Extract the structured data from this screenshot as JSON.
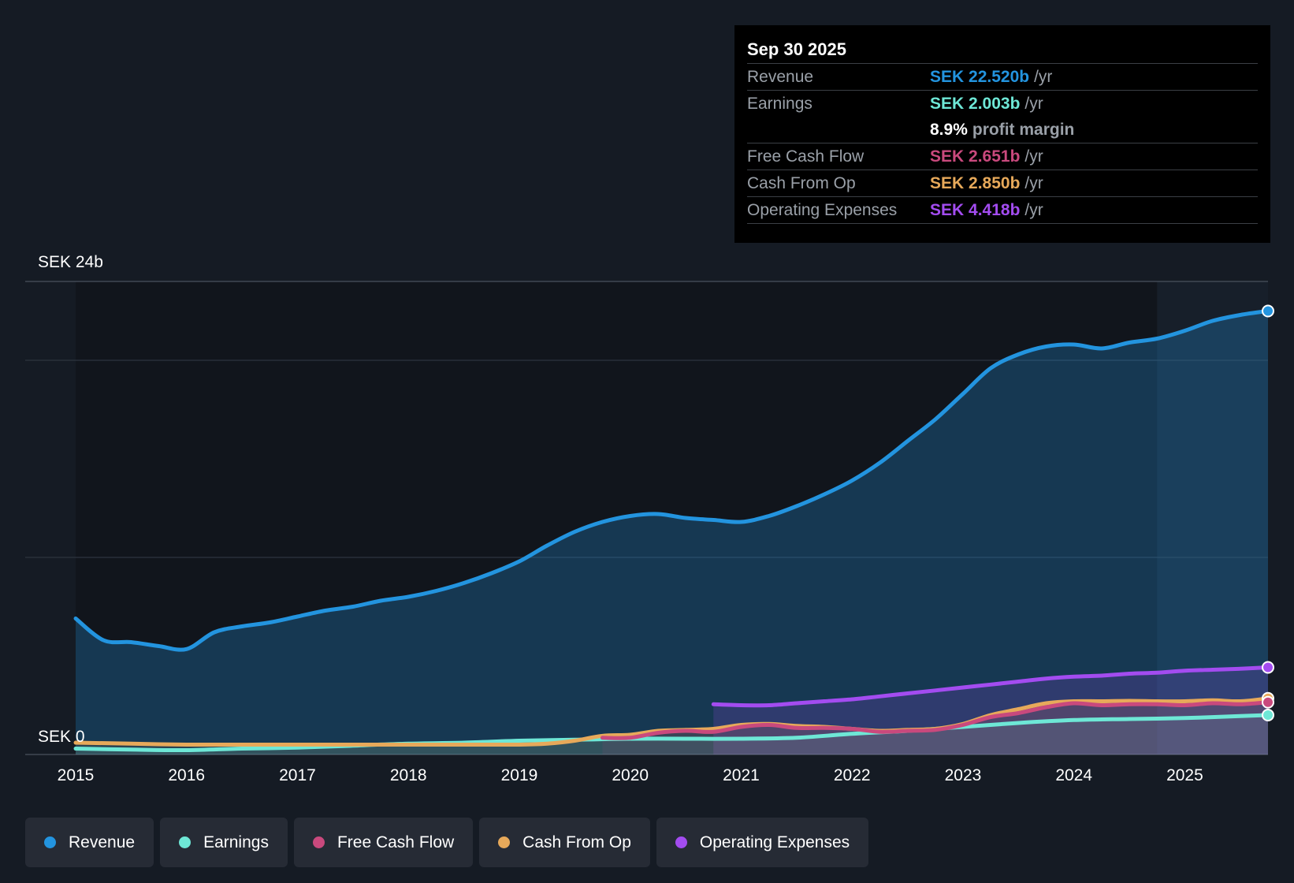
{
  "colors": {
    "background": "#151b24",
    "revenue": "#2394df",
    "earnings": "#6ee7d6",
    "fcf": "#c9497d",
    "cfo": "#e7a95a",
    "opex": "#a34cf0",
    "grid": "#2e353f"
  },
  "tooltip": {
    "date": "Sep 30 2025",
    "rows": [
      {
        "label": "Revenue",
        "value": "SEK 22.520b",
        "unit": "/yr"
      },
      {
        "label": "Earnings",
        "value": "SEK 2.003b",
        "unit": "/yr"
      },
      {
        "margin_value": "8.9%",
        "margin_text": "profit margin"
      },
      {
        "label": "Free Cash Flow",
        "value": "SEK 2.651b",
        "unit": "/yr"
      },
      {
        "label": "Cash From Op",
        "value": "SEK 2.850b",
        "unit": "/yr"
      },
      {
        "label": "Operating Expenses",
        "value": "SEK 4.418b",
        "unit": "/yr"
      }
    ]
  },
  "legend": [
    {
      "label": "Revenue",
      "icon": "revenue-dot-icon"
    },
    {
      "label": "Earnings",
      "icon": "earnings-dot-icon"
    },
    {
      "label": "Free Cash Flow",
      "icon": "fcf-dot-icon"
    },
    {
      "label": "Cash From Op",
      "icon": "cfo-dot-icon"
    },
    {
      "label": "Operating Expenses",
      "icon": "opex-dot-icon"
    }
  ],
  "chart_data": {
    "type": "line",
    "title": "",
    "xlabel": "",
    "ylabel": "",
    "y_top_label": "SEK 24b",
    "y_zero_label": "SEK 0",
    "ylim": [
      0,
      24
    ],
    "xlim": [
      2015.0,
      2025.75
    ],
    "x_ticks": [
      "2015",
      "2016",
      "2017",
      "2018",
      "2019",
      "2020",
      "2021",
      "2022",
      "2023",
      "2024",
      "2025"
    ],
    "highlight_start": 2024.75,
    "series": [
      {
        "name": "Revenue",
        "key": "revenue",
        "x": [
          2015.0,
          2015.25,
          2015.5,
          2015.75,
          2016.0,
          2016.25,
          2016.5,
          2016.75,
          2017.0,
          2017.25,
          2017.5,
          2017.75,
          2018.0,
          2018.25,
          2018.5,
          2018.75,
          2019.0,
          2019.25,
          2019.5,
          2019.75,
          2020.0,
          2020.25,
          2020.5,
          2020.75,
          2021.0,
          2021.25,
          2021.5,
          2021.75,
          2022.0,
          2022.25,
          2022.5,
          2022.75,
          2023.0,
          2023.25,
          2023.5,
          2023.75,
          2024.0,
          2024.25,
          2024.5,
          2024.75,
          2025.0,
          2025.25,
          2025.5,
          2025.75
        ],
        "values": [
          6.9,
          5.8,
          5.7,
          5.5,
          5.35,
          6.2,
          6.5,
          6.7,
          7.0,
          7.3,
          7.5,
          7.8,
          8.0,
          8.3,
          8.7,
          9.2,
          9.8,
          10.6,
          11.3,
          11.8,
          12.1,
          12.2,
          12.0,
          11.9,
          11.8,
          12.1,
          12.6,
          13.2,
          13.9,
          14.8,
          15.9,
          17.0,
          18.3,
          19.6,
          20.3,
          20.7,
          20.8,
          20.6,
          20.9,
          21.1,
          21.5,
          22.0,
          22.3,
          22.5
        ]
      },
      {
        "name": "Earnings",
        "key": "earnings",
        "x": [
          2015.0,
          2015.5,
          2016.0,
          2016.5,
          2017.0,
          2017.5,
          2018.0,
          2018.5,
          2019.0,
          2019.5,
          2020.0,
          2020.5,
          2021.0,
          2021.5,
          2022.0,
          2022.5,
          2023.0,
          2023.5,
          2024.0,
          2024.5,
          2025.0,
          2025.5,
          2025.75
        ],
        "values": [
          0.3,
          0.25,
          0.22,
          0.3,
          0.35,
          0.45,
          0.55,
          0.6,
          0.7,
          0.75,
          0.8,
          0.8,
          0.8,
          0.85,
          1.05,
          1.2,
          1.4,
          1.6,
          1.75,
          1.8,
          1.85,
          1.95,
          2.0
        ]
      },
      {
        "name": "Free Cash Flow",
        "key": "fcf",
        "x": [
          2019.75,
          2020.0,
          2020.25,
          2020.5,
          2020.75,
          2021.0,
          2021.25,
          2021.5,
          2021.75,
          2022.0,
          2022.25,
          2022.5,
          2022.75,
          2023.0,
          2023.25,
          2023.5,
          2023.75,
          2024.0,
          2024.25,
          2024.5,
          2024.75,
          2025.0,
          2025.25,
          2025.5,
          2025.75
        ],
        "values": [
          0.85,
          0.85,
          1.1,
          1.2,
          1.15,
          1.4,
          1.5,
          1.35,
          1.35,
          1.3,
          1.15,
          1.2,
          1.25,
          1.5,
          1.9,
          2.1,
          2.4,
          2.6,
          2.5,
          2.55,
          2.55,
          2.5,
          2.6,
          2.55,
          2.65
        ]
      },
      {
        "name": "Cash From Op",
        "key": "cfo",
        "x": [
          2015.0,
          2015.5,
          2016.0,
          2016.5,
          2017.0,
          2017.5,
          2018.0,
          2018.5,
          2019.0,
          2019.25,
          2019.5,
          2019.75,
          2020.0,
          2020.25,
          2020.5,
          2020.75,
          2021.0,
          2021.25,
          2021.5,
          2021.75,
          2022.0,
          2022.25,
          2022.5,
          2022.75,
          2023.0,
          2023.25,
          2023.5,
          2023.75,
          2024.0,
          2024.25,
          2024.5,
          2024.75,
          2025.0,
          2025.25,
          2025.5,
          2025.75
        ],
        "values": [
          0.6,
          0.55,
          0.5,
          0.5,
          0.5,
          0.5,
          0.5,
          0.5,
          0.5,
          0.55,
          0.7,
          0.95,
          1.0,
          1.2,
          1.25,
          1.3,
          1.5,
          1.55,
          1.45,
          1.4,
          1.3,
          1.2,
          1.25,
          1.3,
          1.55,
          2.0,
          2.3,
          2.6,
          2.7,
          2.7,
          2.72,
          2.7,
          2.7,
          2.75,
          2.7,
          2.85
        ]
      },
      {
        "name": "Operating Expenses",
        "key": "opex",
        "x": [
          2020.75,
          2021.0,
          2021.25,
          2021.5,
          2021.75,
          2022.0,
          2022.25,
          2022.5,
          2022.75,
          2023.0,
          2023.25,
          2023.5,
          2023.75,
          2024.0,
          2024.25,
          2024.5,
          2024.75,
          2025.0,
          2025.25,
          2025.5,
          2025.75
        ],
        "values": [
          2.55,
          2.5,
          2.5,
          2.6,
          2.7,
          2.8,
          2.95,
          3.1,
          3.25,
          3.4,
          3.55,
          3.7,
          3.85,
          3.95,
          4.0,
          4.1,
          4.15,
          4.25,
          4.3,
          4.35,
          4.42
        ]
      }
    ]
  }
}
